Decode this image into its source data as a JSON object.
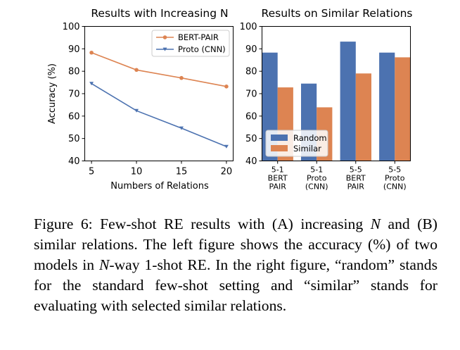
{
  "chart_data": [
    {
      "type": "line",
      "title": "Results with Increasing N",
      "xlabel": "Numbers of Relations",
      "ylabel": "Accuracy (%)",
      "x": [
        5,
        10,
        15,
        20
      ],
      "xticks": [
        "5",
        "10",
        "15",
        "20"
      ],
      "ylim": [
        40,
        100
      ],
      "yticks": [
        "40",
        "50",
        "60",
        "70",
        "80",
        "90",
        "100"
      ],
      "legend_position": "top-right",
      "grid": false,
      "series": [
        {
          "name": "BERT-PAIR",
          "values": [
            88.3,
            80.6,
            77.0,
            73.2
          ],
          "color": "#dd8452",
          "marker": "circle"
        },
        {
          "name": "Proto (CNN)",
          "values": [
            74.5,
            62.4,
            54.6,
            46.4
          ],
          "color": "#4c72b0",
          "marker": "triangle-down"
        }
      ]
    },
    {
      "type": "bar",
      "title": "Results on Similar Relations",
      "categories": [
        [
          "5-1",
          "BERT",
          "PAIR"
        ],
        [
          "5-1",
          "Proto",
          "(CNN)"
        ],
        [
          "5-5",
          "BERT",
          "PAIR"
        ],
        [
          "5-5",
          "Proto",
          "(CNN)"
        ]
      ],
      "ylim": [
        40,
        100
      ],
      "yticks": [
        "40",
        "50",
        "60",
        "70",
        "80",
        "90",
        "100"
      ],
      "legend_position": "lower-left",
      "grid": false,
      "series": [
        {
          "name": "Random",
          "values": [
            88.3,
            74.5,
            93.2,
            88.3
          ],
          "color": "#4c72b0"
        },
        {
          "name": "Similar",
          "values": [
            72.8,
            63.9,
            79.0,
            86.2
          ],
          "color": "#dd8452"
        }
      ]
    }
  ],
  "caption": {
    "label": "Figure 6: ",
    "p1": "Few-shot RE results with (A) increasing ",
    "n1": "N",
    "p2": " and (B) similar relations. The left figure shows the ac­curacy (%) of two models in ",
    "n2": "N",
    "p3": "-way 1-shot RE. In the right figure, “random” stands for the standard few-shot setting and “similar” stands for evaluating with selected similar relations."
  }
}
